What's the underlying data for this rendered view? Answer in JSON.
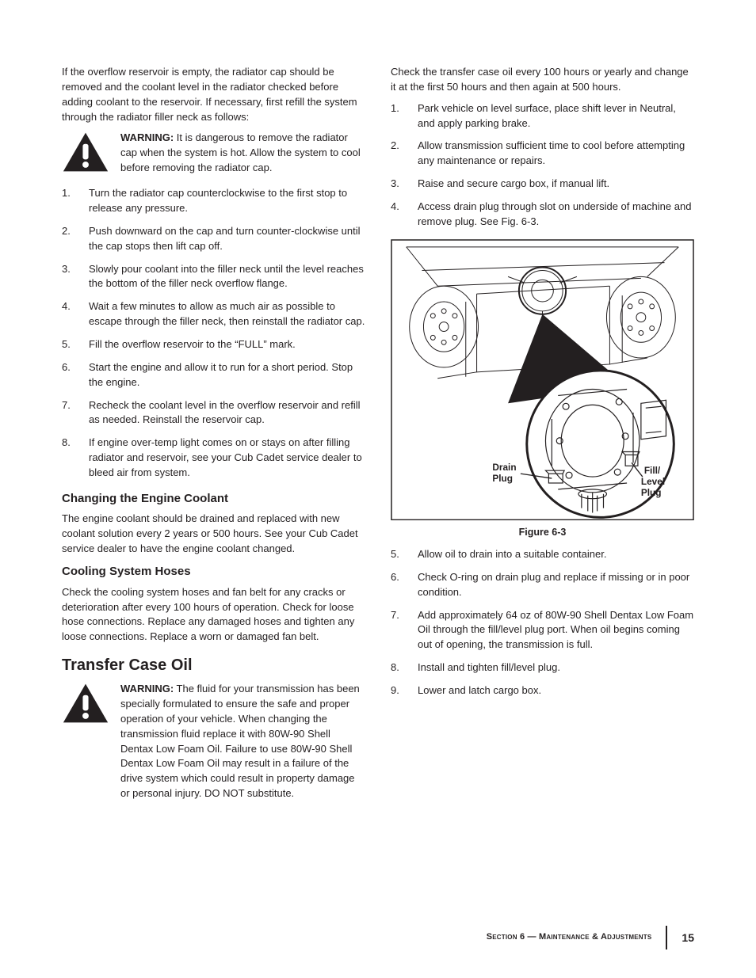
{
  "left": {
    "intro": "If the overflow reservoir is empty, the radiator cap should be removed and the coolant level in the radiator checked before adding coolant to the reservoir. If necessary, first refill the system through the radiator filler neck as follows:",
    "warning1": {
      "label": "WARNING:",
      "text": " It is dangerous to remove the radiator cap when the system is hot. Allow the system to cool before removing the radiator cap."
    },
    "steps": [
      "Turn the radiator cap counterclockwise to the first stop to release any pressure.",
      "Push downward on the cap and turn counter-clockwise until the cap stops then lift cap off.",
      "Slowly pour coolant into the filler neck until the level reaches the bottom of the filler neck overflow flange.",
      "Wait a few minutes to allow as much air as possible to escape through the filler neck, then reinstall the radiator cap.",
      "Fill the overflow reservoir to the “FULL” mark.",
      "Start the engine and allow it to run for a short period. Stop the engine.",
      "Recheck the coolant level in the overflow reservoir and refill as needed. Reinstall the reservoir cap.",
      "If engine over-temp light comes on or stays on after filling radiator and reservoir, see your Cub Cadet service dealer to bleed air from system."
    ],
    "sub1": {
      "title": "Changing the Engine Coolant",
      "text": "The engine coolant should be drained and replaced with new coolant solution every 2 years or 500 hours. See your Cub Cadet service dealer to have the engine coolant changed."
    },
    "sub2": {
      "title": "Cooling System Hoses",
      "text": "Check the cooling system hoses and fan belt for any cracks or deterioration after every 100 hours of operation. Check for loose hose connections. Replace any damaged hoses and tighten any loose connections. Replace a worn or damaged fan belt."
    },
    "section2": {
      "title": "Transfer Case Oil"
    },
    "warning2": {
      "label": "WARNING:",
      "text": " The fluid for your transmission has been specially formulated to ensure the safe and proper operation of your vehicle. When changing the transmission fluid replace it with 80W-90 Shell Dentax Low Foam Oil. Failure to use 80W-90 Shell Dentax Low Foam Oil may result in a failure of the drive system which could result in property damage or personal injury. DO NOT substitute."
    }
  },
  "right": {
    "intro": "Check the transfer case oil every 100 hours or yearly and change it at the first 50 hours and then again at 500 hours.",
    "stepsA": [
      "Park vehicle on level surface, place shift lever in Neutral, and apply parking brake.",
      "Allow transmission sufficient time to cool before attempting any maintenance or repairs.",
      "Raise and secure cargo box, if manual lift.",
      "Access drain plug through slot on underside of machine and remove plug. See Fig. 6-3."
    ],
    "figure": {
      "caption": "Figure 6-3",
      "label_drain1": "Drain",
      "label_drain2": "Plug",
      "label_fill1": "Fill/",
      "label_fill2": "Level",
      "label_fill3": "Plug"
    },
    "stepsB_start": 5,
    "stepsB": [
      "Allow oil to drain into a suitable container.",
      "Check O-ring on drain plug and replace if missing or in poor condition.",
      "Add approximately 64 oz of 80W-90 Shell Dentax Low Foam Oil through the fill/level plug port. When oil begins coming out of opening, the transmission is full.",
      "Install and tighten fill/level plug.",
      "Lower and latch cargo box."
    ]
  },
  "footer": {
    "section": "Section 6 — Maintenance & Adjustments",
    "page": "15"
  },
  "style": {
    "text_color": "#231f20",
    "body_fontsize": 13,
    "sub_fontsize": 15,
    "section_fontsize": 20,
    "warning_icon_fill": "#231f20"
  }
}
